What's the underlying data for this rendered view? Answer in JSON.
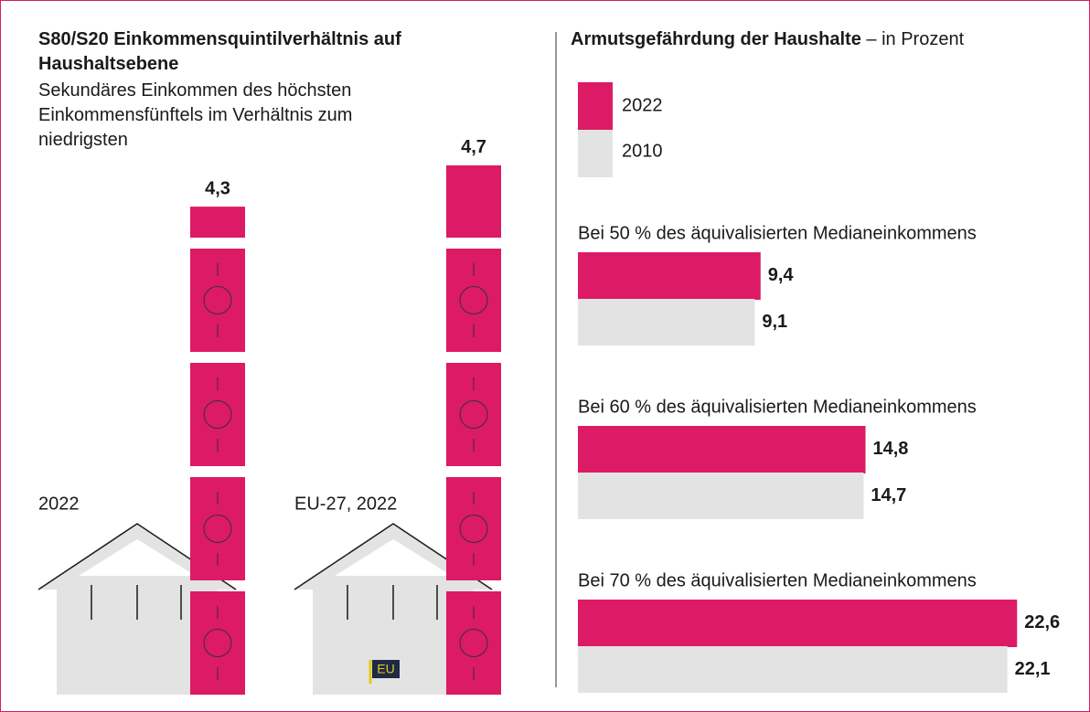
{
  "chart_data": [
    {
      "type": "pictogram",
      "title": "S80/S20 Einkommensquintilverhältnis auf Haushaltsebene",
      "subtitle": "Sekundäres Einkommen des höchsten Einkommensfünftels im Verhältnis zum niedrigsten",
      "categories": [
        "2022",
        "EU-27, 2022"
      ],
      "values": [
        4.3,
        4.7
      ],
      "value_labels": [
        "4,3",
        "4,7"
      ],
      "color": "#dc1a66",
      "badge": "EU"
    },
    {
      "type": "bar",
      "title": "Armutsgefährdung der Haushalte",
      "subtitle": "– in Prozent",
      "categories": [
        "Bei 50 % des äquivalisierten Medianeinkommens",
        "Bei 60 % des äquivalisierten Medianeinkommens",
        "Bei 70 % des äquivalisierten Medianeinkommens"
      ],
      "series": [
        {
          "name": "2022",
          "color": "#dc1a66",
          "values": [
            9.4,
            14.8,
            22.6
          ],
          "value_labels": [
            "9,4",
            "14,8",
            "22,6"
          ]
        },
        {
          "name": "2010",
          "color": "#e3e3e3",
          "values": [
            9.1,
            14.7,
            22.1
          ],
          "value_labels": [
            "9,1",
            "14,7",
            "22,1"
          ]
        }
      ]
    }
  ]
}
